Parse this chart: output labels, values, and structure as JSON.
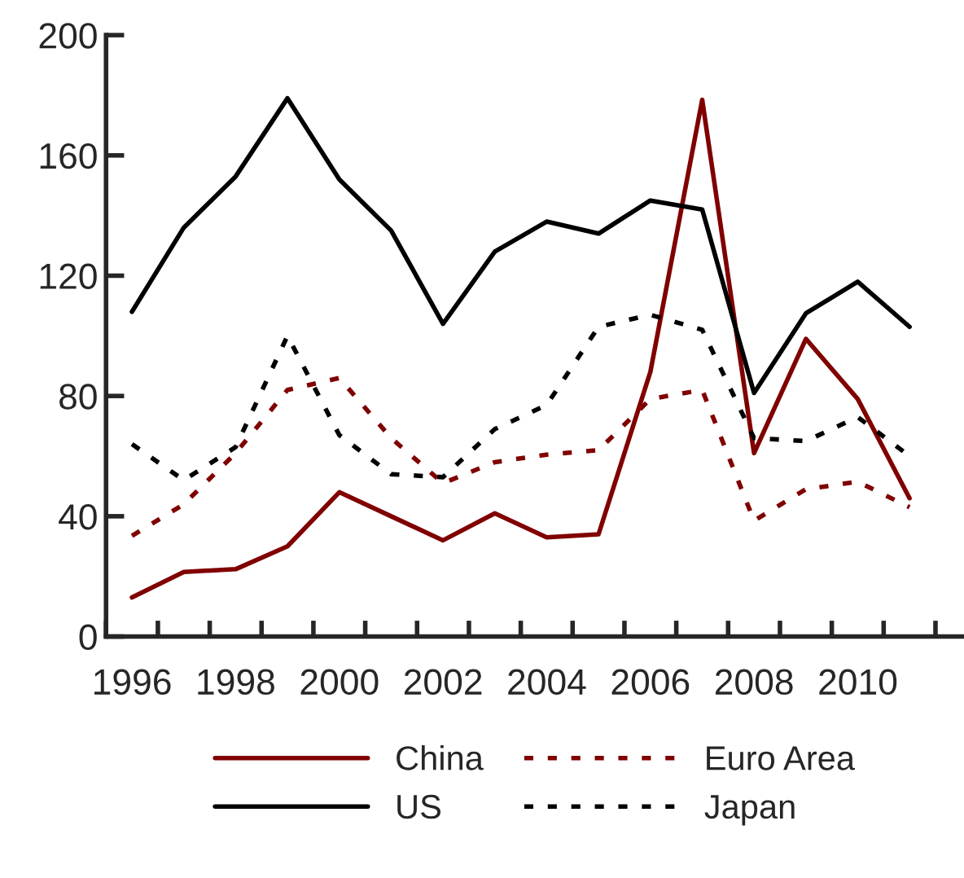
{
  "chart_data": {
    "type": "line",
    "categories": [
      "1996",
      null,
      "1998",
      null,
      "2000",
      null,
      "2002",
      null,
      "2004",
      null,
      "2006",
      null,
      "2008",
      null,
      "2010",
      null
    ],
    "series": [
      {
        "name": "China",
        "color": "#800000",
        "line_style": "solid",
        "values": [
          13,
          21.5,
          22.4,
          30,
          48,
          40,
          32,
          41,
          33,
          34,
          88,
          178.5,
          61,
          99,
          79,
          46
        ]
      },
      {
        "name": "US",
        "color": "#000000",
        "line_style": "solid",
        "values": [
          108,
          136,
          153,
          179,
          152,
          135,
          104,
          128,
          138,
          134,
          145,
          142,
          81,
          107.5,
          118,
          103
        ]
      },
      {
        "name": "Euro Area",
        "color": "#800000",
        "line_style": "dotted",
        "values": [
          33.5,
          44,
          61,
          82,
          86,
          66,
          51,
          58,
          60.5,
          62,
          79,
          82,
          38.5,
          49,
          51.5,
          43
        ]
      },
      {
        "name": "Japan",
        "color": "#000000",
        "line_style": "dotted",
        "values": [
          64,
          52,
          63,
          100,
          67,
          54,
          53,
          69,
          77,
          103,
          107,
          102,
          66,
          65,
          73,
          60
        ]
      }
    ],
    "ylim": [
      0,
      200
    ],
    "yticks": [
      0,
      40,
      80,
      120,
      160,
      200
    ],
    "grid": false,
    "legend": "bottom",
    "marker": "none"
  }
}
